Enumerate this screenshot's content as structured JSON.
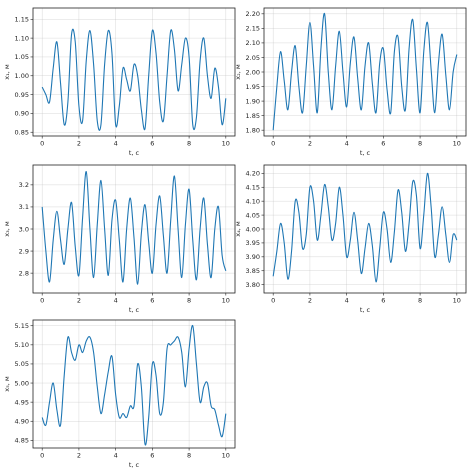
{
  "chart_data": [
    {
      "type": "line",
      "xlabel": "t, c",
      "ylabel": "x₁, м",
      "xlim": [
        -0.5,
        10.5
      ],
      "ylim": [
        0.84,
        1.18
      ],
      "xticks": [
        "0",
        "2",
        "4",
        "6",
        "8",
        "10"
      ],
      "yticks": [
        "0.85",
        "0.90",
        "0.95",
        "1.00",
        "1.05",
        "1.10",
        "1.15"
      ],
      "grid": true,
      "color": "#1f77b4",
      "series": [
        {
          "x": [
            0,
            0.2,
            0.4,
            0.6,
            0.8,
            1.0,
            1.2,
            1.4,
            1.6,
            1.8,
            2.0,
            2.2,
            2.4,
            2.6,
            2.8,
            3.0,
            3.2,
            3.4,
            3.6,
            3.8,
            4.0,
            4.2,
            4.4,
            4.6,
            4.8,
            5.0,
            5.2,
            5.4,
            5.6,
            5.8,
            6.0,
            6.2,
            6.4,
            6.6,
            6.8,
            7.0,
            7.2,
            7.4,
            7.6,
            7.8,
            8.0,
            8.2,
            8.4,
            8.6,
            8.8,
            9.0,
            9.2,
            9.4,
            9.6,
            9.8,
            10.0
          ],
          "values": [
            0.97,
            0.95,
            0.93,
            1.02,
            1.09,
            0.98,
            0.87,
            0.93,
            1.11,
            1.09,
            0.92,
            0.88,
            1.04,
            1.12,
            1.03,
            0.88,
            0.87,
            1.03,
            1.12,
            1.06,
            0.87,
            0.92,
            1.02,
            0.99,
            0.96,
            1.03,
            1.0,
            0.91,
            0.86,
            1.0,
            1.12,
            1.06,
            0.93,
            0.88,
            1.0,
            1.12,
            1.07,
            0.96,
            1.03,
            1.1,
            1.05,
            0.87,
            0.89,
            1.04,
            1.1,
            1.0,
            0.94,
            1.02,
            0.97,
            0.87,
            0.94
          ]
        }
      ]
    },
    {
      "type": "line",
      "xlabel": "t, c",
      "ylabel": "x₂, м",
      "xlim": [
        -0.5,
        10.5
      ],
      "ylim": [
        1.78,
        2.22
      ],
      "xticks": [
        "0",
        "2",
        "4",
        "6",
        "8",
        "10"
      ],
      "yticks": [
        "1.80",
        "1.85",
        "1.90",
        "1.95",
        "2.00",
        "2.05",
        "2.10",
        "2.15",
        "2.20"
      ],
      "grid": true,
      "color": "#1f77b4",
      "series": [
        {
          "x": [
            0,
            0.2,
            0.4,
            0.6,
            0.8,
            1.0,
            1.2,
            1.4,
            1.6,
            1.8,
            2.0,
            2.2,
            2.4,
            2.6,
            2.8,
            3.0,
            3.2,
            3.4,
            3.6,
            3.8,
            4.0,
            4.2,
            4.4,
            4.6,
            4.8,
            5.0,
            5.2,
            5.4,
            5.6,
            5.8,
            6.0,
            6.2,
            6.4,
            6.6,
            6.8,
            7.0,
            7.2,
            7.4,
            7.6,
            7.8,
            8.0,
            8.2,
            8.4,
            8.6,
            8.8,
            9.0,
            9.2,
            9.4,
            9.6,
            9.8,
            10.0
          ],
          "values": [
            1.8,
            1.95,
            2.07,
            1.97,
            1.87,
            2.0,
            2.09,
            1.95,
            1.86,
            2.02,
            2.17,
            2.02,
            1.86,
            2.08,
            2.2,
            2.0,
            1.87,
            2.02,
            2.14,
            2.0,
            1.88,
            2.03,
            2.12,
            1.98,
            1.87,
            2.02,
            2.1,
            1.96,
            1.86,
            2.03,
            2.08,
            1.94,
            1.86,
            2.07,
            2.12,
            1.95,
            1.87,
            2.08,
            2.18,
            2.01,
            1.86,
            2.07,
            2.17,
            2.01,
            1.86,
            2.03,
            2.13,
            1.99,
            1.87,
            2.0,
            2.06
          ]
        }
      ]
    },
    {
      "type": "line",
      "xlabel": "t, c",
      "ylabel": "x₃, м",
      "xlim": [
        -0.5,
        10.5
      ],
      "ylim": [
        2.71,
        3.29
      ],
      "xticks": [
        "0",
        "2",
        "4",
        "6",
        "8",
        "10"
      ],
      "yticks": [
        "2.8",
        "2.9",
        "3.0",
        "3.1",
        "3.2"
      ],
      "grid": true,
      "color": "#1f77b4",
      "series": [
        {
          "x": [
            0,
            0.2,
            0.4,
            0.6,
            0.8,
            1.0,
            1.2,
            1.4,
            1.6,
            1.8,
            2.0,
            2.2,
            2.4,
            2.6,
            2.8,
            3.0,
            3.2,
            3.4,
            3.6,
            3.8,
            4.0,
            4.2,
            4.4,
            4.6,
            4.8,
            5.0,
            5.2,
            5.4,
            5.6,
            5.8,
            6.0,
            6.2,
            6.4,
            6.6,
            6.8,
            7.0,
            7.2,
            7.4,
            7.6,
            7.8,
            8.0,
            8.2,
            8.4,
            8.6,
            8.8,
            9.0,
            9.2,
            9.4,
            9.6,
            9.8,
            10.0
          ],
          "values": [
            3.1,
            2.9,
            2.76,
            2.95,
            3.08,
            2.95,
            2.84,
            3.0,
            3.12,
            2.92,
            2.79,
            3.05,
            3.26,
            3.0,
            2.78,
            3.02,
            3.22,
            3.0,
            2.79,
            3.04,
            3.13,
            2.95,
            2.76,
            3.0,
            3.14,
            2.96,
            2.75,
            2.98,
            3.11,
            2.94,
            2.8,
            3.02,
            3.15,
            2.97,
            2.8,
            3.04,
            3.24,
            3.0,
            2.78,
            3.02,
            3.18,
            2.95,
            2.77,
            3.0,
            3.14,
            2.93,
            2.78,
            3.0,
            3.1,
            2.88,
            2.81
          ]
        }
      ]
    },
    {
      "type": "line",
      "xlabel": "t, c",
      "ylabel": "x₄, м",
      "xlim": [
        -0.5,
        10.5
      ],
      "ylim": [
        3.77,
        4.23
      ],
      "xticks": [
        "0",
        "2",
        "4",
        "6",
        "8",
        "10"
      ],
      "yticks": [
        "3.80",
        "3.85",
        "3.90",
        "3.95",
        "4.00",
        "4.05",
        "4.10",
        "4.15",
        "4.20"
      ],
      "grid": true,
      "color": "#1f77b4",
      "series": [
        {
          "x": [
            0,
            0.2,
            0.4,
            0.6,
            0.8,
            1.0,
            1.2,
            1.4,
            1.6,
            1.8,
            2.0,
            2.2,
            2.4,
            2.6,
            2.8,
            3.0,
            3.2,
            3.4,
            3.6,
            3.8,
            4.0,
            4.2,
            4.4,
            4.6,
            4.8,
            5.0,
            5.2,
            5.4,
            5.6,
            5.8,
            6.0,
            6.2,
            6.4,
            6.6,
            6.8,
            7.0,
            7.2,
            7.4,
            7.6,
            7.8,
            8.0,
            8.2,
            8.4,
            8.6,
            8.8,
            9.0,
            9.2,
            9.4,
            9.6,
            9.8,
            10.0
          ],
          "values": [
            3.83,
            3.92,
            4.02,
            3.95,
            3.82,
            3.92,
            4.1,
            4.06,
            3.93,
            3.98,
            4.15,
            4.1,
            3.96,
            4.05,
            4.16,
            4.08,
            3.96,
            4.02,
            4.15,
            4.05,
            3.9,
            3.96,
            4.06,
            3.96,
            3.84,
            3.93,
            4.02,
            3.94,
            3.81,
            3.93,
            4.06,
            4.0,
            3.88,
            3.99,
            4.14,
            4.06,
            3.92,
            4.02,
            4.17,
            4.12,
            3.93,
            4.05,
            4.2,
            4.08,
            3.9,
            3.98,
            4.08,
            3.98,
            3.88,
            3.98,
            3.96
          ]
        }
      ]
    },
    {
      "type": "line",
      "xlabel": "t, c",
      "ylabel": "x₅, м",
      "xlim": [
        -0.5,
        10.5
      ],
      "ylim": [
        4.83,
        5.165
      ],
      "xticks": [
        "0",
        "2",
        "4",
        "6",
        "8",
        "10"
      ],
      "yticks": [
        "4.85",
        "4.90",
        "4.95",
        "5.00",
        "5.05",
        "5.10",
        "5.15"
      ],
      "grid": true,
      "color": "#1f77b4",
      "series": [
        {
          "x": [
            0,
            0.2,
            0.4,
            0.6,
            0.8,
            1.0,
            1.2,
            1.4,
            1.6,
            1.8,
            2.0,
            2.2,
            2.4,
            2.6,
            2.8,
            3.0,
            3.2,
            3.4,
            3.6,
            3.8,
            4.0,
            4.2,
            4.4,
            4.6,
            4.8,
            5.0,
            5.2,
            5.4,
            5.6,
            5.8,
            6.0,
            6.2,
            6.4,
            6.6,
            6.8,
            7.0,
            7.2,
            7.4,
            7.6,
            7.8,
            8.0,
            8.2,
            8.4,
            8.6,
            8.8,
            9.0,
            9.2,
            9.4,
            9.6,
            9.8,
            10.0
          ],
          "values": [
            4.91,
            4.89,
            4.95,
            5.0,
            4.93,
            4.89,
            5.02,
            5.12,
            5.08,
            5.06,
            5.1,
            5.08,
            5.11,
            5.12,
            5.08,
            4.99,
            4.92,
            4.97,
            5.03,
            5.07,
            4.97,
            4.91,
            4.92,
            4.91,
            4.94,
            4.94,
            5.05,
            4.99,
            4.84,
            4.91,
            5.05,
            5.02,
            4.92,
            4.95,
            5.09,
            5.1,
            5.11,
            5.12,
            5.08,
            4.99,
            5.09,
            5.15,
            5.05,
            4.95,
            4.99,
            5.0,
            4.94,
            4.93,
            4.89,
            4.86,
            4.92
          ]
        }
      ]
    }
  ]
}
